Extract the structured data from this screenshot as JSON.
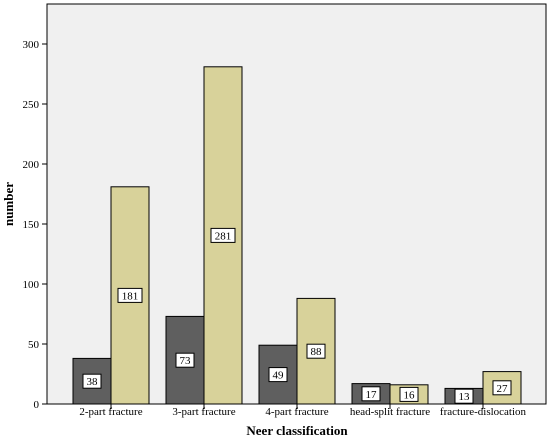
{
  "chart_data": {
    "type": "bar",
    "title": "",
    "xlabel": "Neer classification",
    "ylabel": "number",
    "categories": [
      "2-part fracture",
      "3-part fracture",
      "4-part fracture",
      "head-split fracture",
      "fracture-dislocation"
    ],
    "series": [
      {
        "values": [
          38,
          73,
          49,
          17,
          13
        ],
        "color": "#5f5f5f"
      },
      {
        "values": [
          181,
          281,
          88,
          16,
          27
        ],
        "color": "#d8d29a"
      }
    ],
    "ylim": [
      0,
      330
    ],
    "yticks": [
      0,
      50,
      100,
      150,
      200,
      250,
      300
    ],
    "grid": false,
    "legend": "none",
    "plot_background": "#f0f0f0"
  }
}
